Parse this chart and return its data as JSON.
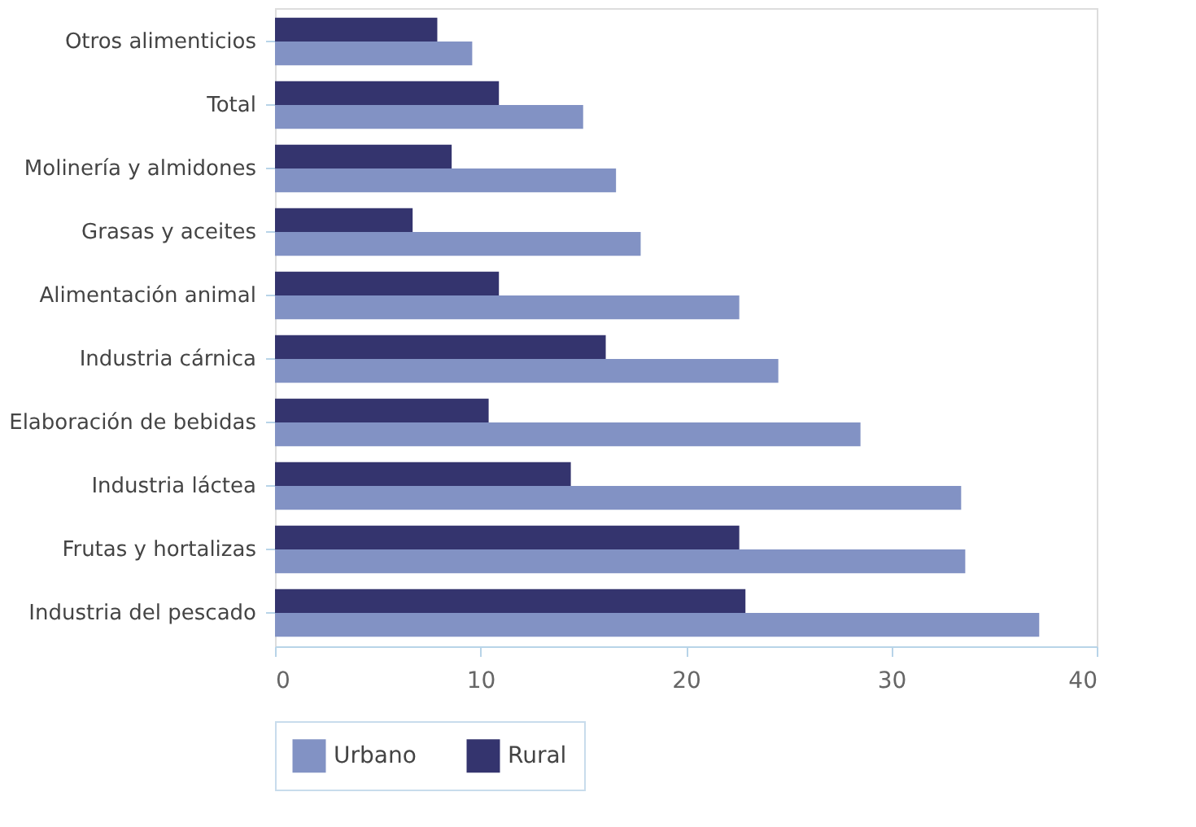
{
  "chart_data": {
    "type": "bar",
    "orientation": "horizontal",
    "categories": [
      "Otros alimenticios",
      "Total",
      "Molinería y almidones",
      "Grasas y aceites",
      "Alimentación animal",
      "Industria cárnica",
      "Elaboración de bebidas",
      "Industria láctea",
      "Frutas y hortalizas",
      "Industria del pescado"
    ],
    "series": [
      {
        "name": "Urbano",
        "color": "#8292c4",
        "values": [
          9.6,
          15.0,
          16.6,
          17.8,
          22.6,
          24.5,
          28.5,
          33.4,
          33.6,
          37.2
        ]
      },
      {
        "name": "Rural",
        "color": "#34346e",
        "values": [
          7.9,
          10.9,
          8.6,
          6.7,
          10.9,
          16.1,
          10.4,
          14.4,
          22.6,
          22.9
        ]
      }
    ],
    "xlim": [
      0,
      40
    ],
    "xticks": [
      0,
      10,
      20,
      30,
      40
    ],
    "grid": false,
    "legend": "bottom"
  }
}
